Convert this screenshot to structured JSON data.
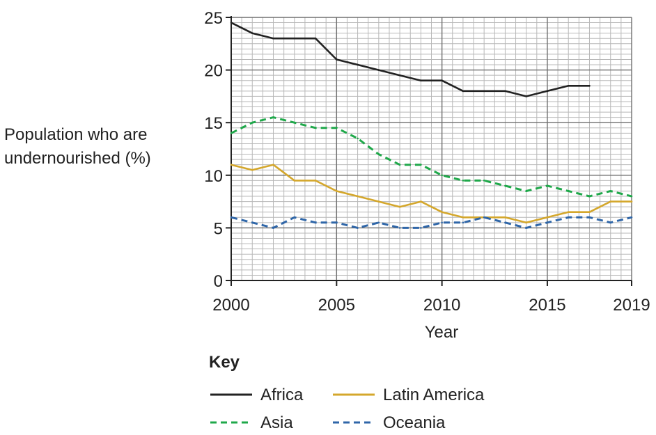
{
  "chart_data": {
    "type": "line",
    "xlabel": "Year",
    "ylabel_lines": [
      "Population who are",
      "undernourished (%)"
    ],
    "xlim": [
      2000,
      2019
    ],
    "ylim": [
      0,
      25
    ],
    "x_ticks": [
      2000,
      2005,
      2010,
      2015,
      2019
    ],
    "y_ticks": [
      0,
      5,
      10,
      15,
      20,
      25
    ],
    "grid": true,
    "key_title": "Key",
    "series": [
      {
        "name": "Africa",
        "color": "#222222",
        "dashed": false,
        "x": [
          2000,
          2001,
          2002,
          2003,
          2004,
          2005,
          2006,
          2007,
          2008,
          2009,
          2010,
          2011,
          2012,
          2013,
          2014,
          2015,
          2016,
          2017
        ],
        "values": [
          24.5,
          23.5,
          23,
          23,
          23,
          21,
          20.5,
          20,
          19.5,
          19,
          19,
          18,
          18,
          18,
          17.5,
          18,
          18.5,
          18.5
        ]
      },
      {
        "name": "Latin America",
        "color": "#d4a72c",
        "dashed": false,
        "x": [
          2000,
          2001,
          2002,
          2003,
          2004,
          2005,
          2006,
          2007,
          2008,
          2009,
          2010,
          2011,
          2012,
          2013,
          2014,
          2015,
          2016,
          2017,
          2018,
          2019
        ],
        "values": [
          11,
          10.5,
          11,
          9.5,
          9.5,
          8.5,
          8,
          7.5,
          7,
          7.5,
          6.5,
          6,
          6,
          6,
          5.5,
          6,
          6.5,
          6.5,
          7.5,
          7.5
        ]
      },
      {
        "name": "Asia",
        "color": "#1fa84a",
        "dashed": true,
        "x": [
          2000,
          2001,
          2002,
          2003,
          2004,
          2005,
          2006,
          2007,
          2008,
          2009,
          2010,
          2011,
          2012,
          2013,
          2014,
          2015,
          2016,
          2017,
          2018,
          2019
        ],
        "values": [
          14,
          15,
          15.5,
          15,
          14.5,
          14.5,
          13.5,
          12,
          11,
          11,
          10,
          9.5,
          9.5,
          9,
          8.5,
          9,
          8.5,
          8,
          8.5,
          8
        ]
      },
      {
        "name": "Oceania",
        "color": "#2f66a8",
        "dashed": true,
        "x": [
          2000,
          2001,
          2002,
          2003,
          2004,
          2005,
          2006,
          2007,
          2008,
          2009,
          2010,
          2011,
          2012,
          2013,
          2014,
          2015,
          2016,
          2017,
          2018,
          2019
        ],
        "values": [
          6,
          5.5,
          5,
          6,
          5.5,
          5.5,
          5,
          5.5,
          5,
          5,
          5.5,
          5.5,
          6,
          5.5,
          5,
          5.5,
          6,
          6,
          5.5,
          6
        ]
      }
    ]
  }
}
